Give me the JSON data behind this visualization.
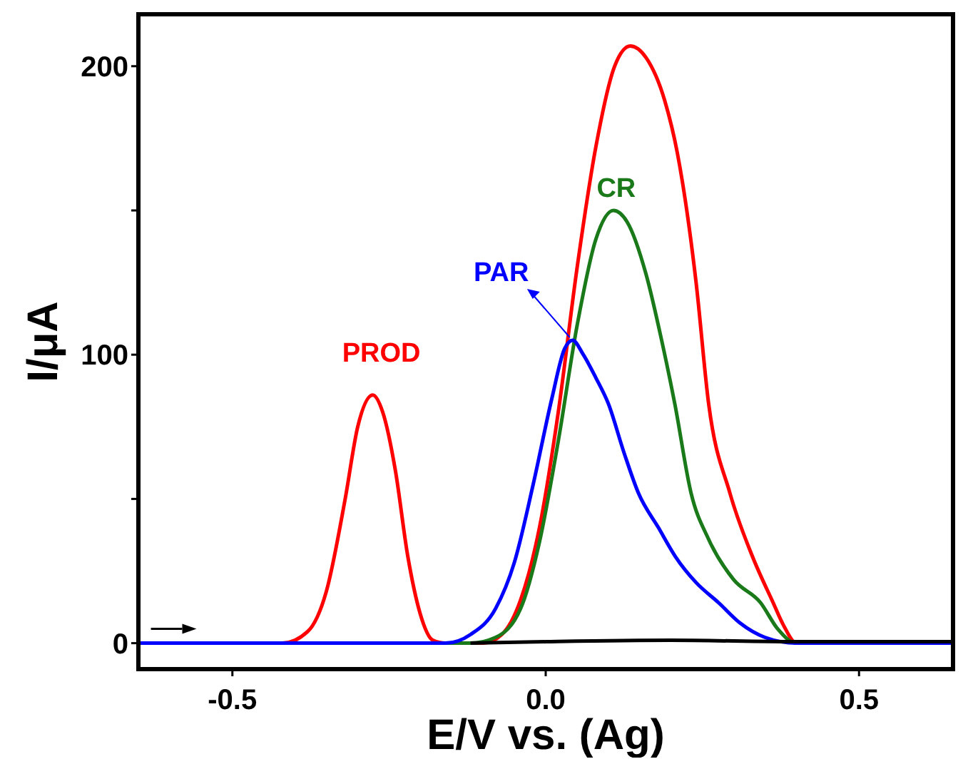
{
  "chart_data": {
    "type": "line",
    "xlabel": "E/V vs. (Ag)",
    "ylabel": "I/μA",
    "xlim": [
      -0.65,
      0.65
    ],
    "xticks": [
      {
        "value": -0.5,
        "label": "-0.5"
      },
      {
        "value": 0,
        "label": "0.0"
      },
      {
        "value": 0.5,
        "label": "0.5"
      }
    ],
    "ylim": [
      -9,
      218
    ],
    "yticks": [
      0,
      {
        "value": 50,
        "label": null
      },
      100,
      {
        "value": 150,
        "label": null
      },
      200
    ],
    "grid": false,
    "marker": "none",
    "line_style": "solid",
    "annotations": [
      {
        "text": "PROD",
        "x": -0.276,
        "y": 86
      },
      {
        "text": "CR",
        "x": 0.108,
        "y": 150
      },
      {
        "text": "PAR",
        "x": 0.043,
        "y": 105
      }
    ],
    "series": [
      {
        "color": "#ff0000",
        "x": [
          -0.65,
          -0.42,
          -0.38,
          -0.35,
          -0.32,
          -0.3,
          -0.276,
          -0.26,
          -0.24,
          -0.22,
          -0.2,
          -0.18,
          -0.16,
          -0.1,
          -0.07,
          -0.04,
          -0.01,
          0.02,
          0.05,
          0.08,
          0.11,
          0.135,
          0.16,
          0.19,
          0.21,
          0.24,
          0.26,
          0.294,
          0.33,
          0.363,
          0.38,
          0.4,
          0.65
        ],
        "values": [
          0,
          0,
          4,
          18,
          50,
          75,
          86,
          80,
          60,
          30,
          10,
          1,
          0,
          0,
          3,
          15,
          40,
          80,
          130,
          172,
          200,
          207,
          203,
          188,
          170,
          125,
          83,
          52,
          30,
          14,
          6,
          0,
          0
        ]
      },
      {
        "color": "#1a7a1a",
        "x": [
          -0.65,
          -0.12,
          -0.08,
          -0.04,
          -0.01,
          0.02,
          0.05,
          0.08,
          0.108,
          0.13,
          0.16,
          0.185,
          0.206,
          0.232,
          0.26,
          0.3,
          0.343,
          0.37,
          0.4,
          0.65
        ],
        "values": [
          0,
          0,
          2,
          12,
          35,
          70,
          110,
          140,
          150,
          146,
          128,
          105,
          83,
          52,
          36,
          22,
          14,
          5,
          0,
          0
        ]
      },
      {
        "color": "#0000ff",
        "x": [
          -0.65,
          -0.16,
          -0.12,
          -0.08,
          -0.05,
          -0.02,
          0.01,
          0.03,
          0.043,
          0.06,
          0.08,
          0.1,
          0.125,
          0.148,
          0.18,
          0.207,
          0.24,
          0.276,
          0.31,
          0.35,
          0.4,
          0.65
        ],
        "values": [
          0,
          0,
          3,
          12,
          28,
          55,
          85,
          102,
          105,
          100,
          92,
          83,
          66,
          52,
          40,
          30,
          21,
          14,
          7,
          2,
          0,
          0
        ]
      },
      {
        "color": "#000000",
        "x": [
          -0.12,
          0,
          0.2,
          0.4,
          0.65
        ],
        "values": [
          0,
          0.5,
          1,
          0.5,
          0.5
        ]
      }
    ]
  }
}
